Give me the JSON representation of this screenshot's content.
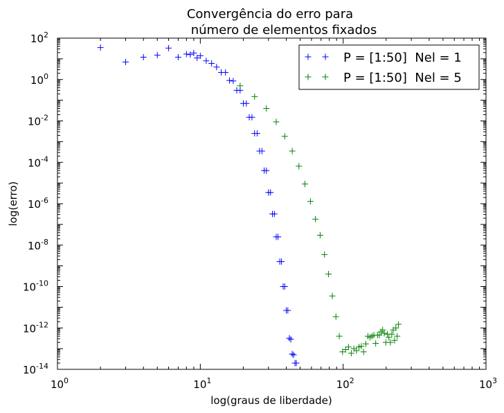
{
  "chart_data": {
    "type": "scatter",
    "title_line1": "Convergência do erro para",
    "title_line2": "número de elementos fixados",
    "xlabel": "log(graus de liberdade)",
    "ylabel": "log(erro)",
    "xscale": "log",
    "yscale": "log",
    "xlim": [
      1,
      1000
    ],
    "ylim": [
      1e-14,
      100
    ],
    "grid": false,
    "legend_position": "top-right",
    "marker": "+",
    "x_ticks": [
      {
        "value": 1,
        "base": "10",
        "exp": "0"
      },
      {
        "value": 10,
        "base": "10",
        "exp": "1"
      },
      {
        "value": 100,
        "base": "10",
        "exp": "2"
      },
      {
        "value": 1000,
        "base": "10",
        "exp": "3"
      }
    ],
    "y_ticks": [
      {
        "value": 100,
        "base": "10",
        "exp": "2"
      },
      {
        "value": 1,
        "base": "10",
        "exp": "0"
      },
      {
        "value": 0.01,
        "base": "10",
        "exp": "-2"
      },
      {
        "value": 0.0001,
        "base": "10",
        "exp": "-4"
      },
      {
        "value": 1e-06,
        "base": "10",
        "exp": "-6"
      },
      {
        "value": 1e-08,
        "base": "10",
        "exp": "-8"
      },
      {
        "value": 1e-10,
        "base": "10",
        "exp": "-10"
      },
      {
        "value": 1e-12,
        "base": "10",
        "exp": "-12"
      },
      {
        "value": 1e-14,
        "base": "10",
        "exp": "-14"
      }
    ],
    "series": [
      {
        "name": "P = [1:50]  Nel = 1",
        "color": "#0000ff",
        "points": [
          [
            2,
            35
          ],
          [
            3,
            7
          ],
          [
            4,
            12
          ],
          [
            5,
            15
          ],
          [
            6,
            33
          ],
          [
            7,
            12
          ],
          [
            8,
            17
          ],
          [
            8.5,
            16
          ],
          [
            9,
            19
          ],
          [
            9.5,
            11
          ],
          [
            10,
            14
          ],
          [
            11,
            8
          ],
          [
            12,
            6
          ],
          [
            13,
            4
          ],
          [
            14,
            2.2
          ],
          [
            15,
            2.2
          ],
          [
            16,
            0.9
          ],
          [
            17,
            0.85
          ],
          [
            18,
            0.3
          ],
          [
            19,
            0.3
          ],
          [
            20,
            0.07
          ],
          [
            21,
            0.07
          ],
          [
            22,
            0.015
          ],
          [
            23,
            0.015
          ],
          [
            24,
            0.0025
          ],
          [
            25,
            0.0025
          ],
          [
            26,
            0.00035
          ],
          [
            27,
            0.00035
          ],
          [
            28,
            4e-05
          ],
          [
            29,
            4e-05
          ],
          [
            30,
            3.5e-06
          ],
          [
            31,
            3.5e-06
          ],
          [
            32,
            3.2e-07
          ],
          [
            33,
            3.2e-07
          ],
          [
            34,
            2.5e-08
          ],
          [
            35,
            2.5e-08
          ],
          [
            36,
            1.6e-09
          ],
          [
            37,
            1.6e-09
          ],
          [
            38,
            1e-10
          ],
          [
            39,
            1e-10
          ],
          [
            40,
            7e-12
          ],
          [
            41,
            7e-12
          ],
          [
            42,
            3.2e-13
          ],
          [
            43,
            2.8e-13
          ],
          [
            44,
            5.5e-14
          ],
          [
            45,
            5e-14
          ],
          [
            46,
            2e-14
          ],
          [
            47,
            2e-14
          ]
        ]
      },
      {
        "name": "P = [1:50]  Nel = 5",
        "color": "#008000",
        "points": [
          [
            19,
            0.5
          ],
          [
            24,
            0.15
          ],
          [
            29,
            0.04
          ],
          [
            34,
            0.009
          ],
          [
            39,
            0.0018
          ],
          [
            44,
            0.00035
          ],
          [
            49,
            6.5e-05
          ],
          [
            54,
            9e-06
          ],
          [
            59,
            1.3e-06
          ],
          [
            64,
            1.8e-07
          ],
          [
            69,
            3e-08
          ],
          [
            74,
            3.5e-09
          ],
          [
            79,
            4e-10
          ],
          [
            84,
            3.5e-11
          ],
          [
            89,
            3.5e-12
          ],
          [
            94,
            4e-13
          ],
          [
            99,
            7e-14
          ],
          [
            104,
            9e-14
          ],
          [
            109,
            1.2e-13
          ],
          [
            114,
            6e-14
          ],
          [
            119,
            1e-13
          ],
          [
            124,
            8e-14
          ],
          [
            129,
            1.2e-13
          ],
          [
            134,
            1.3e-13
          ],
          [
            139,
            7e-14
          ],
          [
            144,
            1.7e-13
          ],
          [
            149,
            4e-13
          ],
          [
            154,
            3.5e-13
          ],
          [
            159,
            4e-13
          ],
          [
            164,
            4.5e-13
          ],
          [
            169,
            1.8e-13
          ],
          [
            174,
            4.5e-13
          ],
          [
            179,
            4.5e-13
          ],
          [
            184,
            6.5e-13
          ],
          [
            189,
            8e-13
          ],
          [
            194,
            5.5e-13
          ],
          [
            199,
            2e-13
          ],
          [
            204,
            5e-13
          ],
          [
            209,
            3.5e-13
          ],
          [
            214,
            2e-13
          ],
          [
            219,
            5e-13
          ],
          [
            224,
            8e-13
          ],
          [
            229,
            2.5e-13
          ],
          [
            234,
            1e-12
          ],
          [
            239,
            4e-13
          ],
          [
            244,
            1.5e-12
          ]
        ]
      }
    ]
  }
}
